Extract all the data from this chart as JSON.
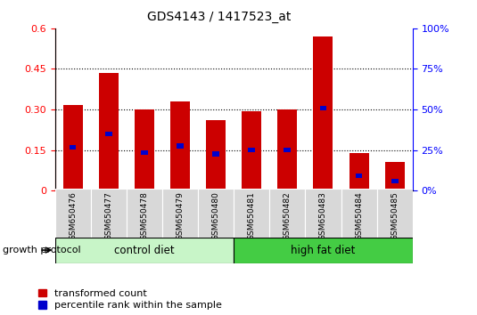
{
  "title": "GDS4143 / 1417523_at",
  "samples": [
    "GSM650476",
    "GSM650477",
    "GSM650478",
    "GSM650479",
    "GSM650480",
    "GSM650481",
    "GSM650482",
    "GSM650483",
    "GSM650484",
    "GSM650485"
  ],
  "transformed_count": [
    0.315,
    0.435,
    0.3,
    0.33,
    0.26,
    0.295,
    0.3,
    0.57,
    0.14,
    0.105
  ],
  "percentile_rank_left": [
    0.16,
    0.21,
    0.14,
    0.165,
    0.135,
    0.15,
    0.15,
    0.305,
    0.055,
    0.035
  ],
  "groups": [
    {
      "label": "control diet",
      "start": 0,
      "end": 4,
      "color": "#c8f5c8"
    },
    {
      "label": "high fat diet",
      "start": 5,
      "end": 9,
      "color": "#44cc44"
    }
  ],
  "group_label": "growth protocol",
  "bar_color": "#cc0000",
  "percentile_color": "#0000cc",
  "ylim_left": [
    0,
    0.6
  ],
  "ylim_right": [
    0,
    100
  ],
  "yticks_left": [
    0,
    0.15,
    0.3,
    0.45,
    0.6
  ],
  "yticks_right": [
    0,
    25,
    50,
    75,
    100
  ],
  "ytick_labels_left": [
    "0",
    "0.15",
    "0.30",
    "0.45",
    "0.6"
  ],
  "ytick_labels_right": [
    "0%",
    "25%",
    "50%",
    "75%",
    "100%"
  ],
  "grid_values": [
    0.15,
    0.3,
    0.45
  ],
  "bar_width": 0.55,
  "legend_items": [
    "transformed count",
    "percentile rank within the sample"
  ]
}
